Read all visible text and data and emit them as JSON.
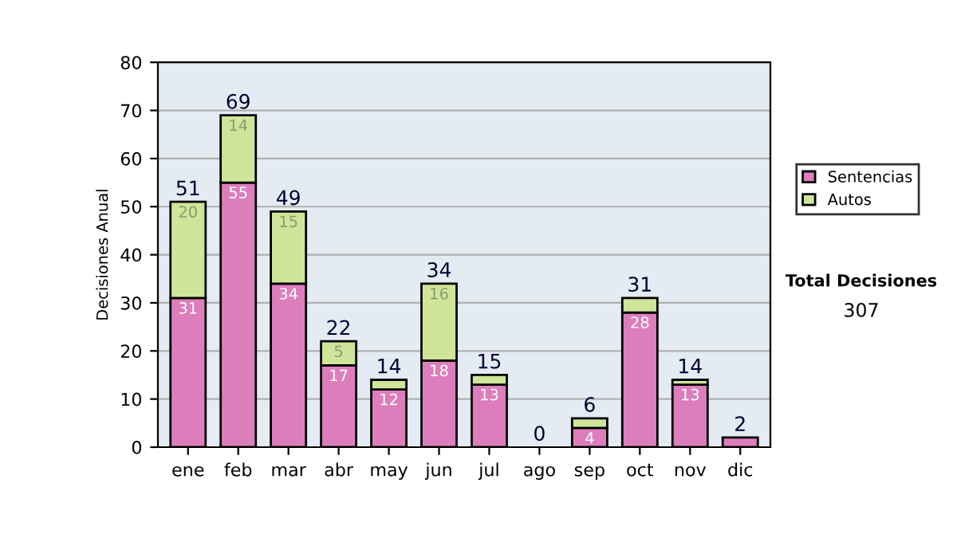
{
  "chart_data": {
    "type": "bar",
    "stacked": true,
    "ylabel": "Decisiones Anual",
    "categories": [
      "ene",
      "feb",
      "mar",
      "abr",
      "may",
      "jun",
      "jul",
      "ago",
      "sep",
      "oct",
      "nov",
      "dic"
    ],
    "series": [
      {
        "name": "Sentencias",
        "color": "#dd7ebc",
        "values": [
          31,
          55,
          34,
          17,
          12,
          18,
          13,
          0,
          4,
          28,
          13,
          2
        ],
        "value_labels": [
          "31",
          "55",
          "34",
          "17",
          "12",
          "18",
          "13",
          null,
          "4",
          "28",
          "13",
          null
        ]
      },
      {
        "name": "Autos",
        "color": "#cfe69a",
        "values": [
          20,
          14,
          15,
          5,
          2,
          16,
          2,
          0,
          2,
          3,
          1,
          0
        ],
        "value_labels": [
          "20",
          "14",
          "15",
          "5",
          null,
          "16",
          null,
          null,
          null,
          null,
          null,
          null
        ]
      }
    ],
    "totals": [
      "51",
      "69",
      "49",
      "22",
      "14",
      "34",
      "15",
      "0",
      "6",
      "31",
      "14",
      "2"
    ],
    "ylim": [
      0,
      80
    ],
    "yticks": [
      0,
      10,
      20,
      30,
      40,
      50,
      60,
      70,
      80
    ],
    "grid": "y",
    "legend": "right",
    "annotations": [
      "Total Decisiones",
      "307"
    ]
  }
}
